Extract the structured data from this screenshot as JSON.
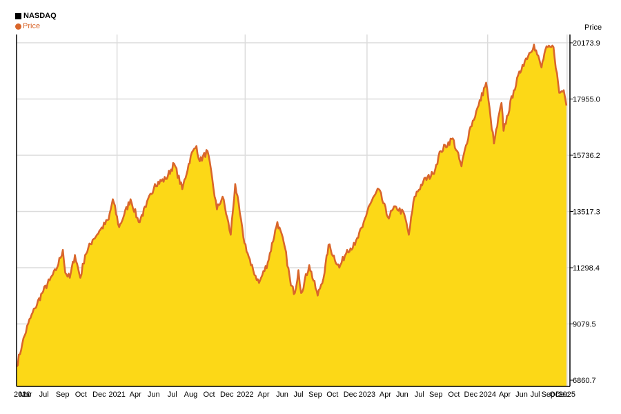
{
  "legend": {
    "title": "NASDAQ",
    "series_label": "Price"
  },
  "colors": {
    "line": "#d9662b",
    "fill": "#fcd817",
    "grid": "#dcdcdc",
    "title_swatch": "#000000"
  },
  "chart_data": {
    "type": "area",
    "title": "NASDAQ",
    "ylabel": "Price",
    "ylim": [
      6860.7,
      20173.9
    ],
    "y_ticks": [
      6860.7,
      9079.5,
      11298.4,
      13517.3,
      15736.2,
      17955.0,
      20173.9
    ],
    "y_tick_labels": [
      "6860.7",
      "9079.5",
      "11298.4",
      "13517.3",
      "15736.2",
      "17955.0",
      "20173.9"
    ],
    "x_range": [
      "2020-04-01",
      "2025-04-10"
    ],
    "x_ticks": [
      {
        "label": "2020",
        "date": "2020-04-01"
      },
      {
        "label": "Mar",
        "date": "2020-05-01"
      },
      {
        "label": "Jul",
        "date": "2020-07-01"
      },
      {
        "label": "Sep",
        "date": "2020-09-01"
      },
      {
        "label": "Oct",
        "date": "2020-11-01"
      },
      {
        "label": "Dec",
        "date": "2021-01-01"
      },
      {
        "label": "2021",
        "date": "2021-03-01"
      },
      {
        "label": "Apr",
        "date": "2021-05-01"
      },
      {
        "label": "Jun",
        "date": "2021-07-01"
      },
      {
        "label": "Jul",
        "date": "2021-09-01"
      },
      {
        "label": "Aug",
        "date": "2021-11-01"
      },
      {
        "label": "Oct",
        "date": "2022-01-01"
      },
      {
        "label": "Dec",
        "date": "2022-03-01"
      },
      {
        "label": "2022",
        "date": "2022-05-01"
      },
      {
        "label": "Apr",
        "date": "2022-07-01"
      },
      {
        "label": "Jun",
        "date": "2022-09-01"
      },
      {
        "label": "Jul",
        "date": "2022-10-25"
      },
      {
        "label": "Sep",
        "date": "2022-12-20"
      },
      {
        "label": "Oct",
        "date": "2023-02-15"
      },
      {
        "label": "Dec",
        "date": "2023-04-15"
      },
      {
        "label": "2023",
        "date": "2023-06-10"
      },
      {
        "label": "Apr",
        "date": "2023-08-10"
      },
      {
        "label": "Jun",
        "date": "2023-10-05"
      },
      {
        "label": "Jul",
        "date": "2023-12-01"
      },
      {
        "label": "Sep",
        "date": "2024-01-25"
      },
      {
        "label": "Oct",
        "date": "2024-03-25"
      },
      {
        "label": "Dec",
        "date": "2024-05-20"
      },
      {
        "label": "2024",
        "date": "2024-07-15"
      },
      {
        "label": "Apr",
        "date": "2024-09-10"
      },
      {
        "label": "Jun",
        "date": "2024-11-05"
      },
      {
        "label": "Jul",
        "date": "2024-12-20"
      },
      {
        "label": "Sep",
        "date": "2025-02-01"
      },
      {
        "label": "Oct",
        "date": "2025-02-25"
      },
      {
        "label": "Dec",
        "date": "2025-03-20"
      },
      {
        "label": "2025",
        "date": "2025-04-05"
      }
    ],
    "grid": true,
    "legend_position": "top-left",
    "series": [
      {
        "name": "Price",
        "points": [
          [
            "2020-04-01",
            7400
          ],
          [
            "2020-04-20",
            8300
          ],
          [
            "2020-05-10",
            9100
          ],
          [
            "2020-06-01",
            9700
          ],
          [
            "2020-06-25",
            10300
          ],
          [
            "2020-07-20",
            10800
          ],
          [
            "2020-08-10",
            11200
          ],
          [
            "2020-09-02",
            12000
          ],
          [
            "2020-09-10",
            11100
          ],
          [
            "2020-09-25",
            10900
          ],
          [
            "2020-10-12",
            11800
          ],
          [
            "2020-10-30",
            10900
          ],
          [
            "2020-11-15",
            11800
          ],
          [
            "2020-12-10",
            12400
          ],
          [
            "2021-01-05",
            12800
          ],
          [
            "2021-02-01",
            13200
          ],
          [
            "2021-02-15",
            14000
          ],
          [
            "2021-03-08",
            12900
          ],
          [
            "2021-03-25",
            13400
          ],
          [
            "2021-04-15",
            14000
          ],
          [
            "2021-05-12",
            13100
          ],
          [
            "2021-06-05",
            13700
          ],
          [
            "2021-07-05",
            14600
          ],
          [
            "2021-08-10",
            14800
          ],
          [
            "2021-09-07",
            15400
          ],
          [
            "2021-10-04",
            14400
          ],
          [
            "2021-11-01",
            15700
          ],
          [
            "2021-11-20",
            16100
          ],
          [
            "2021-12-01",
            15500
          ],
          [
            "2021-12-27",
            15900
          ],
          [
            "2022-01-27",
            13600
          ],
          [
            "2022-02-15",
            14100
          ],
          [
            "2022-03-14",
            12600
          ],
          [
            "2022-03-29",
            14600
          ],
          [
            "2022-04-25",
            12500
          ],
          [
            "2022-05-20",
            11400
          ],
          [
            "2022-06-16",
            10700
          ],
          [
            "2022-07-15",
            11500
          ],
          [
            "2022-08-16",
            13100
          ],
          [
            "2022-09-10",
            12100
          ],
          [
            "2022-09-30",
            10600
          ],
          [
            "2022-10-13",
            10300
          ],
          [
            "2022-10-25",
            11200
          ],
          [
            "2022-11-03",
            10300
          ],
          [
            "2022-11-30",
            11400
          ],
          [
            "2022-12-28",
            10200
          ],
          [
            "2023-01-20",
            11100
          ],
          [
            "2023-02-02",
            12200
          ],
          [
            "2023-03-10",
            11300
          ],
          [
            "2023-04-05",
            12000
          ],
          [
            "2023-05-01",
            12200
          ],
          [
            "2023-05-26",
            12900
          ],
          [
            "2023-06-15",
            13700
          ],
          [
            "2023-07-19",
            14400
          ],
          [
            "2023-08-18",
            13300
          ],
          [
            "2023-09-15",
            13700
          ],
          [
            "2023-10-12",
            13400
          ],
          [
            "2023-10-27",
            12600
          ],
          [
            "2023-11-15",
            14100
          ],
          [
            "2023-12-14",
            14700
          ],
          [
            "2024-01-15",
            15000
          ],
          [
            "2024-02-10",
            15900
          ],
          [
            "2024-03-21",
            16400
          ],
          [
            "2024-04-19",
            15300
          ],
          [
            "2024-05-15",
            16700
          ],
          [
            "2024-06-15",
            17700
          ],
          [
            "2024-07-10",
            18600
          ],
          [
            "2024-07-25",
            17200
          ],
          [
            "2024-08-05",
            16200
          ],
          [
            "2024-08-30",
            17800
          ],
          [
            "2024-09-06",
            16700
          ],
          [
            "2024-10-10",
            18300
          ],
          [
            "2024-11-08",
            19300
          ],
          [
            "2024-12-16",
            20100
          ],
          [
            "2025-01-10",
            19200
          ],
          [
            "2025-01-23",
            19900
          ],
          [
            "2025-02-19",
            20000
          ],
          [
            "2025-03-10",
            18200
          ],
          [
            "2025-03-25",
            18300
          ],
          [
            "2025-04-03",
            17700
          ]
        ]
      }
    ]
  }
}
